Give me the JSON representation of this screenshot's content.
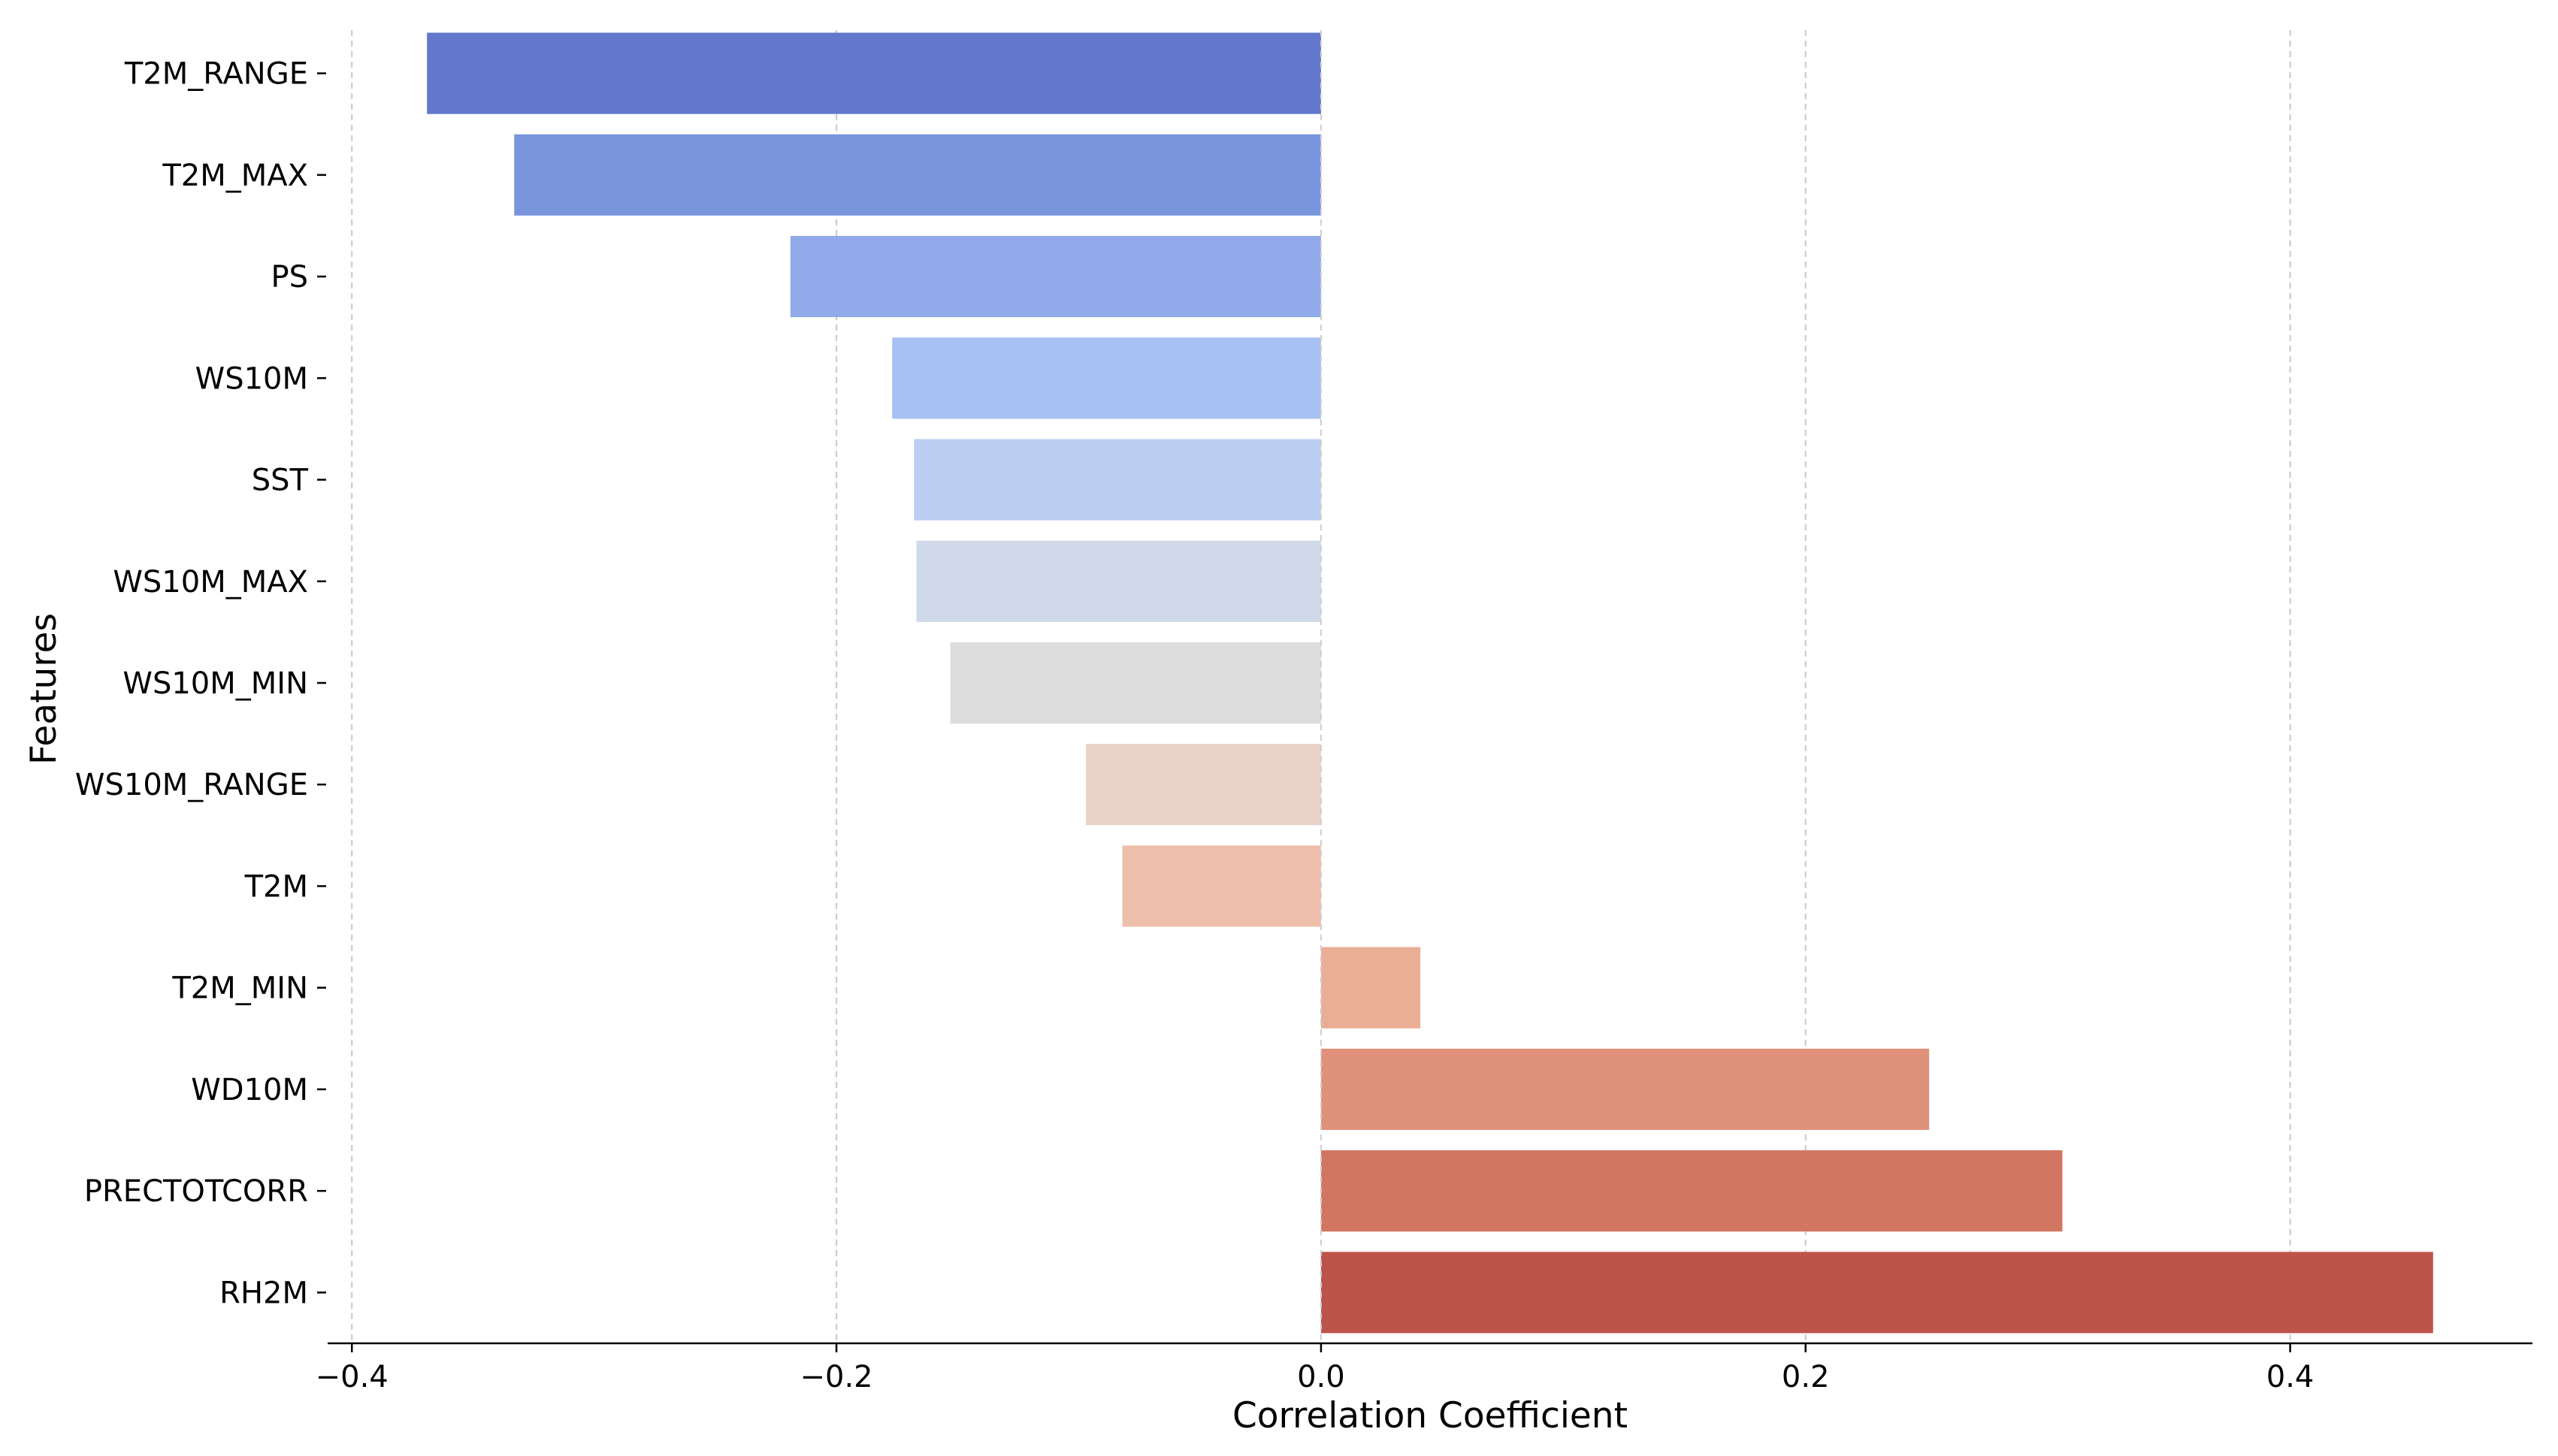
{
  "chart_data": {
    "type": "bar",
    "orientation": "horizontal",
    "xlabel": "Correlation Coefficient",
    "ylabel": "Features",
    "xlim": [
      -0.41,
      0.5
    ],
    "xticks": [
      -0.4,
      -0.2,
      0.0,
      0.2,
      0.4
    ],
    "xtick_labels": [
      "−0.4",
      "−0.2",
      "0.0",
      "0.2",
      "0.4"
    ],
    "grid": "x-dashed",
    "categories": [
      "T2M_RANGE",
      "T2M_MAX",
      "PS",
      "WS10M",
      "SST",
      "WS10M_MAX",
      "WS10M_MIN",
      "WS10M_RANGE",
      "T2M",
      "T2M_MIN",
      "WD10M",
      "PRECTOTCORR",
      "RH2M"
    ],
    "values": [
      -0.369,
      -0.333,
      -0.219,
      -0.177,
      -0.168,
      -0.167,
      -0.153,
      -0.097,
      -0.082,
      0.041,
      0.251,
      0.306,
      0.459
    ],
    "colors": [
      "#6178cc",
      "#7995de",
      "#90aaea",
      "#a7c1f2",
      "#bccff3",
      "#d0d9e9",
      "#dcdcdc",
      "#e8d2c8",
      "#edbfab",
      "#eaae94",
      "#e0917a",
      "#d27661",
      "#bc544c"
    ]
  }
}
